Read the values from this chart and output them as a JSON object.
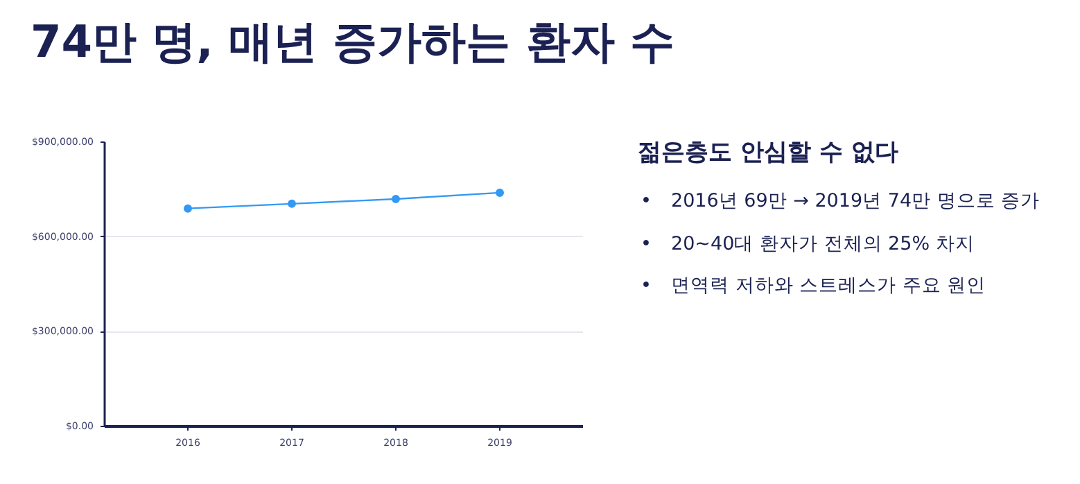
{
  "chart_data": {
    "type": "line",
    "title": "74만 명, 매년 증가하는 환자 수",
    "subtitle": "젊은층도 안심할 수 없다",
    "annotations": [
      "• 2016년 69만 → 2019년 74만 명으로 증가",
      "• 20~40대 환자가 전체의 25% 차지",
      "• 면역력 저하와 스트레스가 주요 원인"
    ],
    "categories": [
      "2016",
      "2017",
      "2018",
      "2019"
    ],
    "series": [
      {
        "color": "#3399f3",
        "values": [
          690000,
          705000,
          720000,
          740000
        ]
      }
    ],
    "ylim": [
      0,
      900000
    ],
    "yticks": [
      {
        "value": 0,
        "label": "$0.00"
      },
      {
        "value": 300000,
        "label": "$300,000.00"
      },
      {
        "value": 600000,
        "label": "$600,000.00"
      },
      {
        "value": 900000,
        "label": "$900,000.00"
      }
    ],
    "grid": "y",
    "marker": "circle"
  }
}
